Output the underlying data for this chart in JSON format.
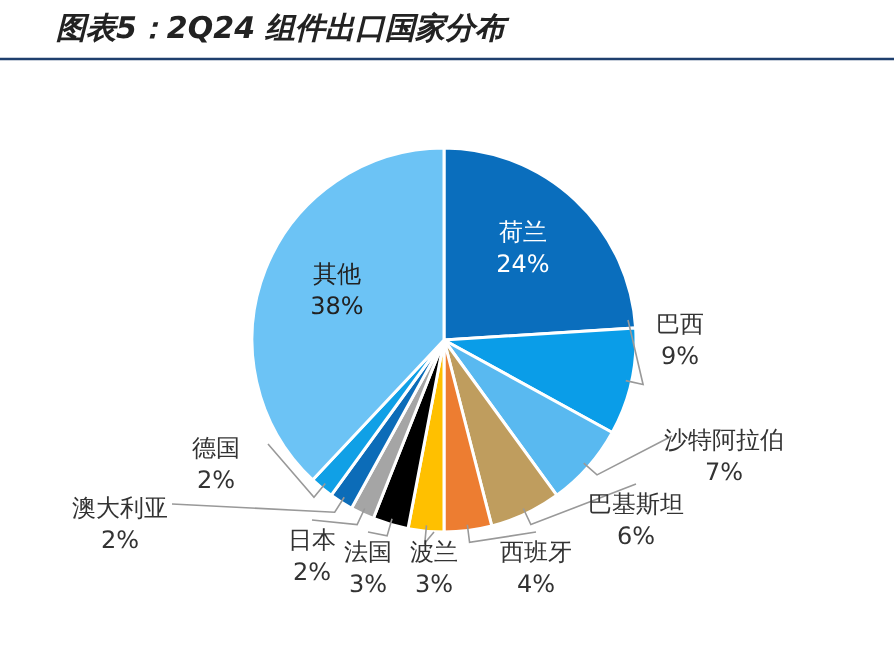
{
  "chart_data": {
    "type": "pie",
    "title": "图表5：2Q24 组件出口国家分布",
    "categories": [
      "荷兰",
      "巴西",
      "沙特阿拉伯",
      "巴基斯坦",
      "西班牙",
      "波兰",
      "法国",
      "日本",
      "澳大利亚",
      "德国",
      "其他"
    ],
    "values": [
      24,
      9,
      7,
      6,
      4,
      3,
      3,
      2,
      2,
      2,
      38
    ],
    "value_labels": [
      "24%",
      "9%",
      "7%",
      "6%",
      "4%",
      "3%",
      "3%",
      "2%",
      "2%",
      "2%",
      "38%"
    ],
    "colors": [
      "#0a6ebd",
      "#0a9de8",
      "#59b9f0",
      "#bf9d5e",
      "#ed7d31",
      "#ffc000",
      "#000000",
      "#a5a5a5",
      "#0c6cb8",
      "#10a0e6",
      "#6cc3f5"
    ]
  }
}
